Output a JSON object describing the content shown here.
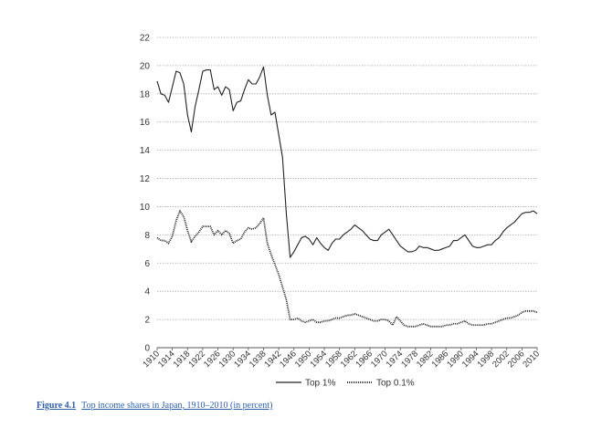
{
  "caption": {
    "figure_number": "Figure 4.1",
    "text": "Top income shares in Japan, 1910–2010 (in percent)"
  },
  "colors": {
    "line": "#222222",
    "grid": "#9a9a9a",
    "caption": "#2d5fa8"
  },
  "chart_data": {
    "type": "line",
    "title": "",
    "xlabel": "",
    "ylabel": "",
    "ylim": [
      0,
      22
    ],
    "xlim": [
      1910,
      2010
    ],
    "yticks": [
      0,
      2,
      4,
      6,
      8,
      10,
      12,
      14,
      16,
      18,
      20,
      22
    ],
    "xticks": [
      1910,
      1914,
      1918,
      1922,
      1926,
      1930,
      1934,
      1938,
      1942,
      1946,
      1950,
      1954,
      1958,
      1962,
      1966,
      1970,
      1974,
      1978,
      1982,
      1986,
      1990,
      1994,
      1998,
      2002,
      2006,
      2010
    ],
    "grid": "horizontal dotted",
    "legend_position": "bottom",
    "x": [
      1910,
      1911,
      1912,
      1913,
      1914,
      1915,
      1916,
      1917,
      1918,
      1919,
      1920,
      1921,
      1922,
      1923,
      1924,
      1925,
      1926,
      1927,
      1928,
      1929,
      1930,
      1931,
      1932,
      1933,
      1934,
      1935,
      1936,
      1937,
      1938,
      1939,
      1940,
      1941,
      1942,
      1943,
      1944,
      1945,
      1946,
      1947,
      1948,
      1949,
      1950,
      1951,
      1952,
      1953,
      1954,
      1955,
      1956,
      1957,
      1958,
      1959,
      1960,
      1961,
      1962,
      1963,
      1964,
      1965,
      1966,
      1967,
      1968,
      1969,
      1970,
      1971,
      1972,
      1973,
      1974,
      1975,
      1976,
      1977,
      1978,
      1979,
      1980,
      1981,
      1982,
      1983,
      1984,
      1985,
      1986,
      1987,
      1988,
      1989,
      1990,
      1991,
      1992,
      1993,
      1994,
      1995,
      1996,
      1997,
      1998,
      1999,
      2000,
      2001,
      2002,
      2003,
      2004,
      2005,
      2006,
      2007,
      2008,
      2009,
      2010
    ],
    "series": [
      {
        "name": "Top 1%",
        "style": "solid",
        "values": [
          18.9,
          18.0,
          17.9,
          17.4,
          18.5,
          19.6,
          19.5,
          18.7,
          16.5,
          15.3,
          17.1,
          18.3,
          19.6,
          19.7,
          19.7,
          18.3,
          18.5,
          17.9,
          18.5,
          18.3,
          16.8,
          17.4,
          17.5,
          18.3,
          19.0,
          18.7,
          18.7,
          19.2,
          19.9,
          17.9,
          16.5,
          16.7,
          15.1,
          13.5,
          9.5,
          6.4,
          6.8,
          7.3,
          7.8,
          7.9,
          7.7,
          7.3,
          7.8,
          7.4,
          7.1,
          6.9,
          7.4,
          7.7,
          7.7,
          8.0,
          8.2,
          8.4,
          8.7,
          8.5,
          8.3,
          8.0,
          7.7,
          7.6,
          7.6,
          8.0,
          8.2,
          8.4,
          8.0,
          7.6,
          7.2,
          7.0,
          6.8,
          6.8,
          6.9,
          7.2,
          7.1,
          7.1,
          7.0,
          6.9,
          6.9,
          7.0,
          7.1,
          7.2,
          7.6,
          7.6,
          7.8,
          8.0,
          7.6,
          7.2,
          7.1,
          7.1,
          7.2,
          7.3,
          7.3,
          7.6,
          7.8,
          8.2,
          8.5,
          8.7,
          8.9,
          9.2,
          9.5,
          9.6,
          9.6,
          9.7,
          9.5
        ]
      },
      {
        "name": "Top 0.1%",
        "style": "dotted",
        "values": [
          7.8,
          7.6,
          7.6,
          7.4,
          7.9,
          9.0,
          9.7,
          9.3,
          8.3,
          7.5,
          7.9,
          8.2,
          8.6,
          8.6,
          8.6,
          8.0,
          8.3,
          8.0,
          8.3,
          8.1,
          7.4,
          7.6,
          7.7,
          8.2,
          8.5,
          8.4,
          8.5,
          8.8,
          9.2,
          7.4,
          6.6,
          5.9,
          5.2,
          4.3,
          3.4,
          2.0,
          2.0,
          2.1,
          1.9,
          1.8,
          1.9,
          2.0,
          1.8,
          1.8,
          1.9,
          1.9,
          2.0,
          2.1,
          2.1,
          2.2,
          2.3,
          2.3,
          2.4,
          2.3,
          2.2,
          2.1,
          2.0,
          1.9,
          1.9,
          2.0,
          2.0,
          1.9,
          1.6,
          2.2,
          1.9,
          1.6,
          1.5,
          1.5,
          1.5,
          1.6,
          1.7,
          1.6,
          1.5,
          1.5,
          1.5,
          1.5,
          1.6,
          1.6,
          1.7,
          1.7,
          1.8,
          1.9,
          1.7,
          1.6,
          1.6,
          1.6,
          1.6,
          1.7,
          1.7,
          1.8,
          1.9,
          2.0,
          2.1,
          2.1,
          2.2,
          2.3,
          2.5,
          2.6,
          2.6,
          2.6,
          2.5
        ]
      }
    ]
  }
}
